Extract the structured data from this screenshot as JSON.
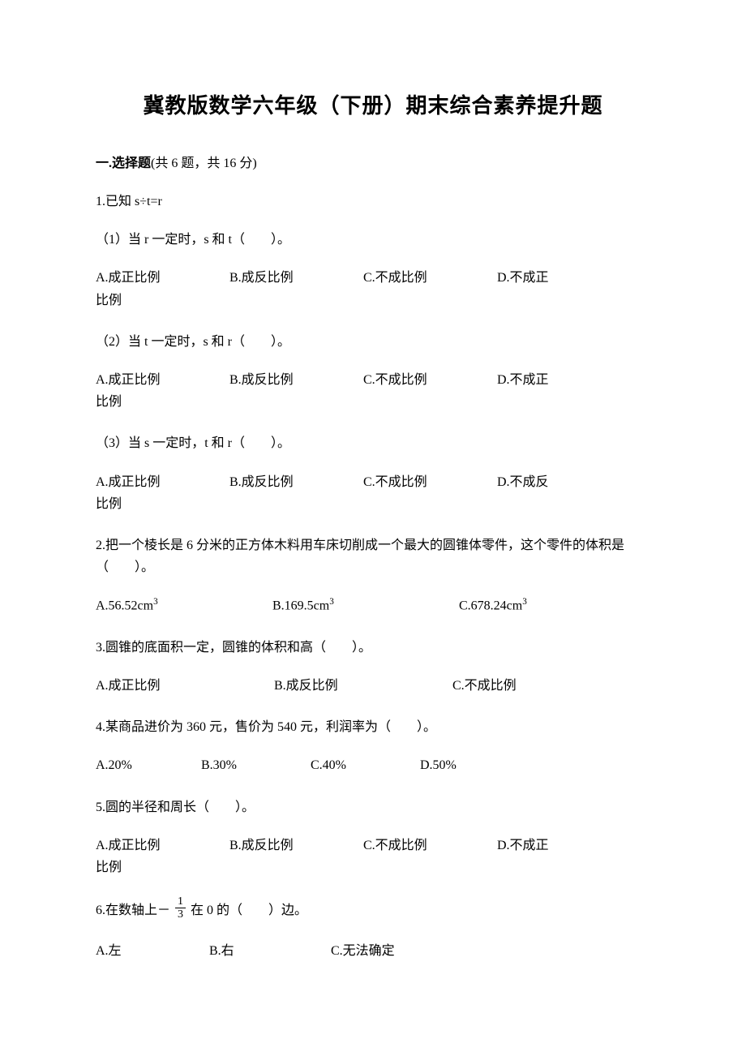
{
  "title": "冀教版数学六年级（下册）期末综合素养提升题",
  "section1": {
    "label_bold": "一.选择题",
    "label_rest": "(共 6 题，共 16 分)"
  },
  "q1": {
    "stem": "1.已知 s÷t=r",
    "sub1": "（1）当 r 一定时，s 和 t（　　）。",
    "sub2": "（2）当 t 一定时，s 和 r（　　）。",
    "sub3": "（3）当 s 一定时，t 和 r（　　）。",
    "opts12": {
      "a": "A.成正比例",
      "b": "B.成反比例",
      "c": "C.不成比例",
      "d_line1": "D.不成正",
      "d_line2": "比例"
    },
    "opts3": {
      "a": "A.成正比例",
      "b": "B.成反比例",
      "c": "C.不成比例",
      "d_line1": "D.不成反",
      "d_line2": "比例"
    }
  },
  "q2": {
    "stem": "2.把一个棱长是 6 分米的正方体木料用车床切削成一个最大的圆锥体零件，这个零件的体积是（　　）。",
    "a": "A.56.52cm",
    "b": "B.169.5cm",
    "c": "C.678.24cm",
    "sup": "3"
  },
  "q3": {
    "stem": "3.圆锥的底面积一定，圆锥的体积和高（　　）。",
    "a": "A.成正比例",
    "b": "B.成反比例",
    "c": "C.不成比例"
  },
  "q4": {
    "stem": "4.某商品进价为 360 元，售价为 540 元，利润率为（　　）。",
    "a": "A.20%",
    "b": "B.30%",
    "c": "C.40%",
    "d": "D.50%"
  },
  "q5": {
    "stem": "5.圆的半径和周长（　　）。",
    "a": "A.成正比例",
    "b": "B.成反比例",
    "c": "C.不成比例",
    "d_line1": "D.不成正",
    "d_line2": "比例"
  },
  "q6": {
    "stem_before": "6.在数轴上－",
    "frac_num": "1",
    "frac_den": "3",
    "stem_after": "在 0 的（　　）边。",
    "a": "A.左",
    "b": "B.右",
    "c": "C.无法确定"
  }
}
